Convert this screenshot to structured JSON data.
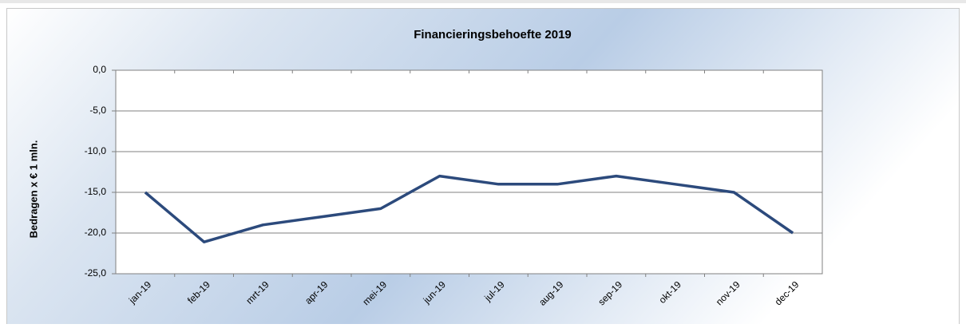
{
  "chart_data": {
    "type": "line",
    "title": "Financieringsbehoefte 2019",
    "y_label": "Bedragen x € 1 mln.",
    "categories": [
      "jan-19",
      "feb-19",
      "mrt-19",
      "apr-19",
      "mei-19",
      "jun-19",
      "jul-19",
      "aug-19",
      "sep-19",
      "okt-19",
      "nov-19",
      "dec-19"
    ],
    "series": [
      {
        "name": "Financieringsbehoefte",
        "color": "#2c4a7c",
        "values": [
          -15,
          -21.1,
          -19,
          -18,
          -17,
          -13,
          -14,
          -14,
          -13,
          -14,
          -15,
          -20
        ]
      }
    ],
    "ylim": [
      -25,
      0
    ],
    "yticks": [
      {
        "value": 0,
        "label": "0,0"
      },
      {
        "value": -5,
        "label": "-5,0"
      },
      {
        "value": -10,
        "label": "-10,0"
      },
      {
        "value": -15,
        "label": "-15,0"
      },
      {
        "value": -20,
        "label": "-20,0"
      },
      {
        "value": -25,
        "label": "-25,0"
      }
    ],
    "grid": true
  }
}
